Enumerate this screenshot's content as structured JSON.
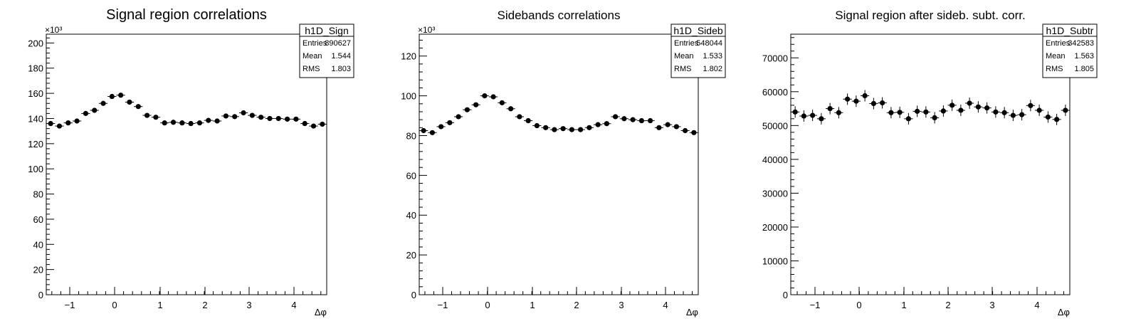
{
  "chart_data": [
    {
      "type": "scatter",
      "title": "Signal region correlations",
      "xlabel": "Δφ",
      "ylabel": "",
      "xlim": [
        -1.5708,
        4.7124
      ],
      "ylim": [
        0,
        207
      ],
      "y_exponent_label": "×10³",
      "x_ticks": [
        "−1",
        "0",
        "1",
        "2",
        "3",
        "4"
      ],
      "y_ticks": [
        "0",
        "20",
        "40",
        "60",
        "80",
        "100",
        "120",
        "140",
        "160",
        "180",
        "200"
      ],
      "stats_box": {
        "name": "h1D_Sign",
        "rows": [
          {
            "label": "Entries",
            "value": "890627"
          },
          {
            "label": "Mean",
            "value": "1.544"
          },
          {
            "label": "RMS",
            "value": "1.803"
          }
        ]
      },
      "series": [
        {
          "values": [
            136,
            134,
            136.5,
            138,
            144,
            146.5,
            152,
            157.5,
            158.5,
            153,
            149.5,
            142.5,
            141,
            136.5,
            137,
            136.5,
            136,
            136.5,
            138.5,
            138,
            142,
            141.5,
            144.5,
            142.5,
            141,
            140,
            140,
            139.5,
            139.5,
            136,
            134,
            135.5
          ]
        }
      ]
    },
    {
      "type": "scatter",
      "title": "Sidebands correlations",
      "xlabel": "Δφ",
      "ylabel": "",
      "xlim": [
        -1.5708,
        4.7124
      ],
      "ylim": [
        0,
        131
      ],
      "y_exponent_label": "×10³",
      "x_ticks": [
        "−1",
        "0",
        "1",
        "2",
        "3",
        "4"
      ],
      "y_ticks": [
        "0",
        "20",
        "40",
        "60",
        "80",
        "100",
        "120"
      ],
      "stats_box": {
        "name": "h1D_Sideb",
        "rows": [
          {
            "label": "Entries",
            "value": "548044"
          },
          {
            "label": "Mean",
            "value": "1.533"
          },
          {
            "label": "RMS",
            "value": "1.802"
          }
        ]
      },
      "series": [
        {
          "values": [
            82.5,
            81.5,
            84.5,
            86.5,
            89.5,
            93,
            95.5,
            100,
            99.5,
            96.5,
            93.5,
            89.5,
            87.5,
            85,
            84,
            83,
            83.5,
            83,
            83,
            84,
            85.5,
            86,
            89.5,
            88.5,
            88,
            87.5,
            87.5,
            84,
            85.5,
            84.5,
            82.5,
            81.5
          ]
        }
      ]
    },
    {
      "type": "scatter",
      "title": "Signal region after sideb. subt. corr.",
      "xlabel": "Δφ",
      "ylabel": "",
      "xlim": [
        -1.5708,
        4.7124
      ],
      "ylim": [
        0,
        77000
      ],
      "y_exponent_label": "",
      "x_ticks": [
        "−1",
        "0",
        "1",
        "2",
        "3",
        "4"
      ],
      "y_ticks": [
        "0",
        "10000",
        "20000",
        "30000",
        "40000",
        "50000",
        "60000",
        "70000"
      ],
      "stats_box": {
        "name": "h1D_Subtr",
        "rows": [
          {
            "label": "Entries",
            "value": "342583"
          },
          {
            "label": "Mean",
            "value": "1.563"
          },
          {
            "label": "RMS",
            "value": "1.805"
          }
        ]
      },
      "series": [
        {
          "values": [
            54000,
            52800,
            53000,
            52000,
            55000,
            53800,
            57800,
            57200,
            58800,
            56500,
            56700,
            53800,
            53900,
            52000,
            54200,
            54000,
            52300,
            54300,
            56000,
            54500,
            56600,
            55500,
            55200,
            54000,
            53800,
            53000,
            53200,
            55900,
            54500,
            52500,
            51800,
            54500
          ]
        }
      ]
    }
  ]
}
